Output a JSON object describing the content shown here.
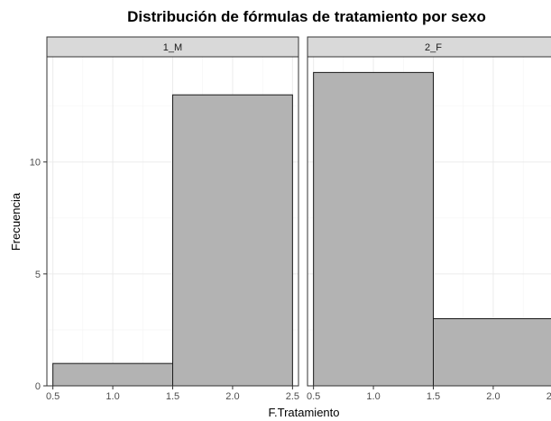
{
  "chart_data": {
    "type": "bar",
    "subtype": "histogram",
    "title": "Distribución de fórmulas de tratamiento por sexo",
    "xlabel": "F.Tratamiento",
    "ylabel": "Frecuencia",
    "xlim": [
      0.45,
      2.55
    ],
    "ylim": [
      0,
      14.7
    ],
    "x_ticks": [
      0.5,
      1.0,
      1.5,
      2.0,
      2.5
    ],
    "x_tick_labels": [
      "0.5",
      "1.0",
      "1.5",
      "2.0",
      "2.5"
    ],
    "y_ticks": [
      0,
      5,
      10
    ],
    "y_tick_labels": [
      "0",
      "5",
      "10"
    ],
    "grid": true,
    "colors": {
      "bar_fill": "#b3b3b3",
      "bar_stroke": "#1a1a1a",
      "strip_fill": "#d9d9d9",
      "panel_border": "#333333",
      "grid": "#ebebeb"
    },
    "panels": [
      {
        "label": "1_M",
        "bins": [
          {
            "x0": 0.5,
            "x1": 1.5,
            "count": 1
          },
          {
            "x0": 1.5,
            "x1": 2.5,
            "count": 13
          }
        ]
      },
      {
        "label": "2_F",
        "bins": [
          {
            "x0": 0.5,
            "x1": 1.5,
            "count": 14
          },
          {
            "x0": 1.5,
            "x1": 2.5,
            "count": 3
          }
        ]
      }
    ]
  }
}
